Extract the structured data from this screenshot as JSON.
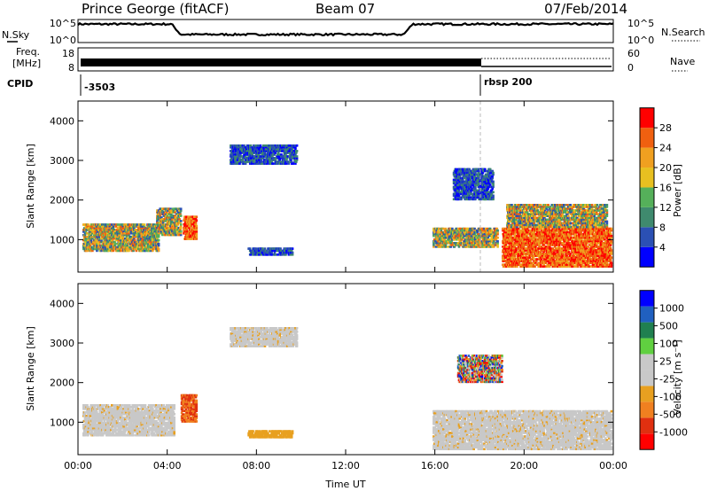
{
  "header": {
    "station": "Prince George (fitACF)",
    "beam": "Beam 07",
    "date": "07/Feb/2014"
  },
  "noise_panel": {
    "left_label": "N.Sky",
    "right_label": "N.Search",
    "left_ticks": [
      "10^5",
      "10^0"
    ],
    "right_ticks": [
      "10^5",
      "10^0"
    ]
  },
  "freq_panel": {
    "left_label_1": "Freq.",
    "left_label_2": "[MHz]",
    "right_label": "Nave",
    "left_ticks": [
      "18",
      "8"
    ],
    "right_ticks": [
      "60",
      "0"
    ]
  },
  "cpid": {
    "label": "CPID",
    "entries": [
      "-3503",
      "rbsp 200"
    ]
  },
  "colors": {
    "power_scale": [
      "#0000ff",
      "#2b50b4",
      "#3f8a6e",
      "#55b05a",
      "#e8c020",
      "#f0a020",
      "#f06010",
      "#ff0000"
    ],
    "velocity_scale": [
      "#ff0000",
      "#e03010",
      "#f08020",
      "#e8a020",
      "#c8c8c8",
      "#c8c8c8",
      "#60d040",
      "#208050",
      "#2060c0",
      "#0000ff"
    ]
  },
  "chart_data": [
    {
      "type": "heatmap",
      "quantity": "Power",
      "ylabel": "Slant Range [km]",
      "colorbar_label": "Power [dB]",
      "colorbar_ticks": [
        "4",
        "8",
        "12",
        "16",
        "20",
        "24",
        "28"
      ],
      "ylim": [
        180,
        4500
      ],
      "yticks": [
        "1000",
        "2000",
        "3000",
        "4000"
      ],
      "xlim": [
        "00:00",
        "24:00"
      ],
      "grid": false,
      "regions": [
        {
          "t0": 0.2,
          "t1": 3.6,
          "r0": 700,
          "r1": 1400,
          "level": "medium"
        },
        {
          "t0": 3.5,
          "t1": 4.6,
          "r0": 1100,
          "r1": 1800,
          "level": "medium"
        },
        {
          "t0": 4.7,
          "t1": 5.3,
          "r0": 1000,
          "r1": 1600,
          "level": "high"
        },
        {
          "t0": 6.8,
          "t1": 9.8,
          "r0": 2900,
          "r1": 3400,
          "level": "low"
        },
        {
          "t0": 7.6,
          "t1": 9.6,
          "r0": 600,
          "r1": 800,
          "level": "low"
        },
        {
          "t0": 15.9,
          "t1": 18.8,
          "r0": 800,
          "r1": 1300,
          "level": "medium"
        },
        {
          "t0": 16.8,
          "t1": 18.6,
          "r0": 2000,
          "r1": 2800,
          "level": "low"
        },
        {
          "t0": 19.0,
          "t1": 23.9,
          "r0": 300,
          "r1": 1300,
          "level": "high"
        },
        {
          "t0": 19.2,
          "t1": 23.7,
          "r0": 1300,
          "r1": 1900,
          "level": "medium"
        }
      ]
    },
    {
      "type": "heatmap",
      "quantity": "Velocity",
      "ylabel": "Slant Range [km]",
      "colorbar_label": "Velocity [m s⁻¹]",
      "colorbar_ticks": [
        "-1000",
        "-500",
        "-100",
        "-25",
        "25",
        "100",
        "500",
        "1000"
      ],
      "ylim": [
        180,
        4500
      ],
      "yticks": [
        "1000",
        "2000",
        "3000",
        "4000"
      ],
      "xlim": [
        "00:00",
        "24:00"
      ],
      "xticks": [
        "00:00",
        "04:00",
        "08:00",
        "12:00",
        "16:00",
        "20:00",
        "00:00"
      ],
      "xlabel": "Time UT",
      "grid": false,
      "regions": [
        {
          "t0": 0.2,
          "t1": 4.3,
          "r0": 650,
          "r1": 1450,
          "level": "ground"
        },
        {
          "t0": 4.6,
          "t1": 5.3,
          "r0": 1000,
          "r1": 1700,
          "level": "neg_mid"
        },
        {
          "t0": 6.8,
          "t1": 9.8,
          "r0": 2900,
          "r1": 3400,
          "level": "ground"
        },
        {
          "t0": 7.6,
          "t1": 9.6,
          "r0": 600,
          "r1": 800,
          "level": "neg_low"
        },
        {
          "t0": 15.9,
          "t1": 23.9,
          "r0": 300,
          "r1": 1300,
          "level": "ground"
        },
        {
          "t0": 17.0,
          "t1": 19.0,
          "r0": 2000,
          "r1": 2700,
          "level": "mixed"
        }
      ]
    }
  ],
  "time_axis": {
    "xlabel": "Time UT",
    "ticks": [
      "00:00",
      "04:00",
      "08:00",
      "12:00",
      "16:00",
      "20:00",
      "00:00"
    ]
  }
}
